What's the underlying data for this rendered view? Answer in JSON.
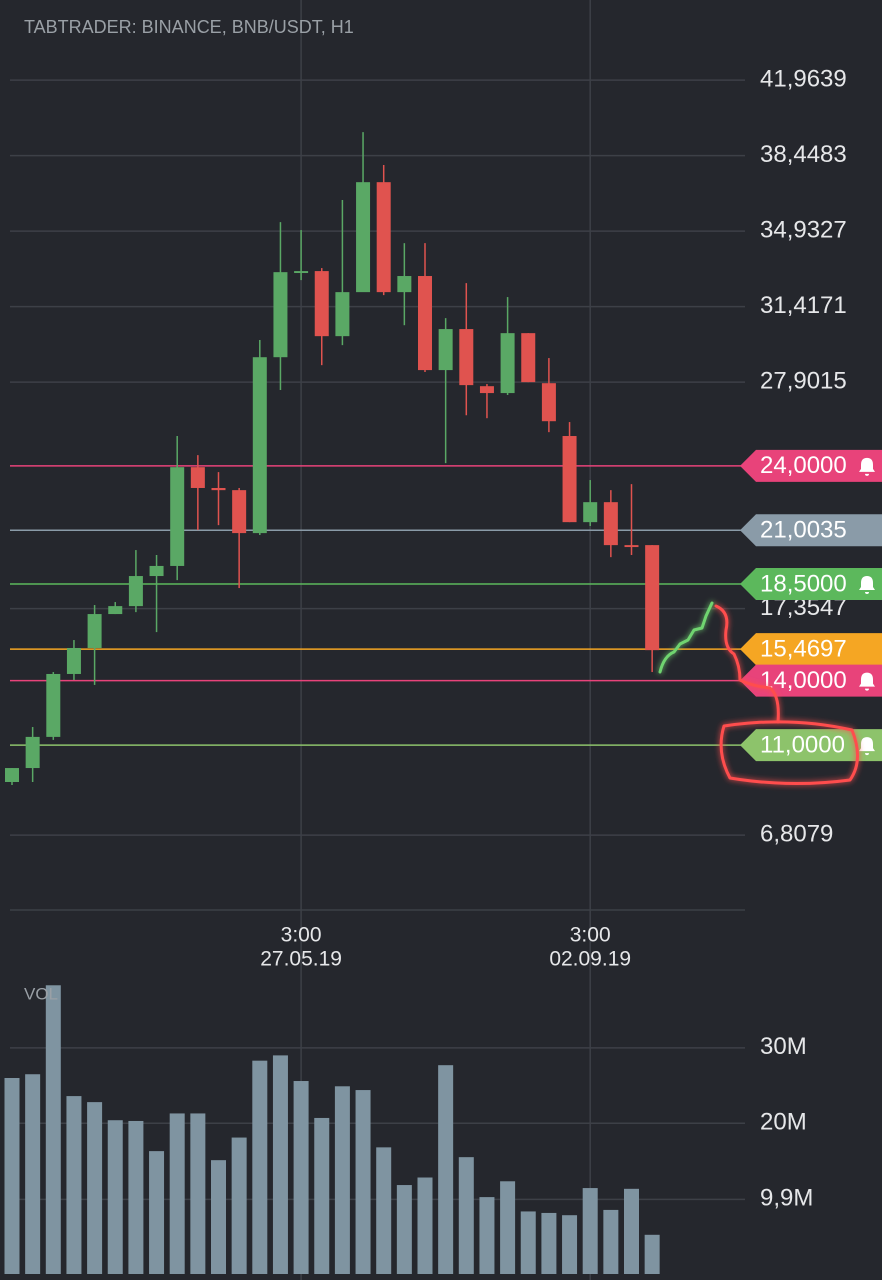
{
  "chart_data": [
    {
      "type": "candlestick",
      "title": "TABTRADER: BINANCE, BNB/USDT, H1",
      "categories": [
        null,
        null,
        null,
        null,
        null,
        null,
        null,
        null,
        null,
        null,
        null,
        null,
        null,
        null,
        "3:00",
        null,
        null,
        null,
        null,
        null,
        null,
        null,
        null,
        null,
        null,
        null,
        null,
        null,
        "3:00",
        null,
        null,
        null
      ],
      "dates": [
        null,
        null,
        null,
        null,
        null,
        null,
        null,
        null,
        null,
        null,
        null,
        null,
        null,
        null,
        "27.05.19",
        null,
        null,
        null,
        null,
        null,
        null,
        null,
        null,
        null,
        null,
        null,
        null,
        null,
        "02.09.19",
        null,
        null,
        null
      ],
      "open": [
        9.28,
        9.93,
        11.38,
        14.31,
        15.52,
        17.1,
        17.47,
        18.87,
        19.34,
        23.94,
        22.97,
        22.87,
        20.87,
        29.06,
        32.98,
        33.07,
        30.04,
        32.09,
        37.21,
        32.09,
        32.84,
        28.46,
        30.37,
        27.71,
        27.39,
        30.18,
        27.85,
        25.39,
        21.38,
        22.31,
        20.31,
        20.31
      ],
      "close": [
        9.93,
        11.38,
        14.31,
        15.52,
        17.1,
        17.47,
        18.87,
        19.34,
        23.94,
        22.97,
        22.87,
        20.87,
        29.06,
        33.02,
        33.07,
        30.04,
        32.09,
        37.21,
        32.09,
        32.84,
        28.46,
        30.37,
        27.76,
        27.39,
        30.18,
        27.9,
        26.08,
        21.38,
        22.31,
        20.31,
        20.22,
        15.42
      ],
      "high": [
        9.93,
        11.84,
        14.4,
        15.89,
        17.52,
        17.66,
        20.08,
        19.85,
        25.39,
        24.5,
        23.71,
        22.97,
        29.86,
        35.35,
        34.98,
        33.21,
        36.38,
        39.54,
        38.01,
        34.37,
        34.37,
        30.88,
        32.51,
        27.81,
        31.86,
        30.18,
        29.02,
        26.04,
        23.34,
        22.87,
        23.15,
        20.31
      ],
      "low": [
        9.14,
        9.28,
        11.24,
        14.03,
        13.8,
        17.1,
        17.19,
        16.26,
        18.68,
        21.01,
        21.24,
        18.31,
        20.78,
        27.53,
        32.65,
        28.69,
        29.62,
        32.18,
        31.95,
        30.55,
        28.37,
        24.13,
        26.36,
        26.22,
        27.3,
        27.9,
        25.57,
        21.38,
        21.2,
        19.75,
        19.85,
        14.4
      ],
      "up_color": "#5aa865",
      "down_color": "#e0534f",
      "ylim": [
        3.32,
        43.83
      ],
      "yticks": [
        {
          "value": 41.9639,
          "label": "41,9639"
        },
        {
          "value": 38.4483,
          "label": "38,4483"
        },
        {
          "value": 34.9327,
          "label": "34,9327"
        },
        {
          "value": 31.4171,
          "label": "31,4171"
        },
        {
          "value": 27.9015,
          "label": "27,9015"
        },
        {
          "value": 17.3547,
          "label": "17,3547"
        },
        {
          "value": 6.8079,
          "label": "6,8079"
        }
      ],
      "grid": true,
      "price_lines": [
        {
          "value": 24,
          "label": "24,0000",
          "color": "#e8437a",
          "alert": true
        },
        {
          "value": 21.0035,
          "label": "21,0035",
          "color": "#8a9ba8",
          "alert": false
        },
        {
          "value": 18.5,
          "label": "18,5000",
          "color": "#5cb85c",
          "alert": true
        },
        {
          "value": 15.4697,
          "label": "15,4697",
          "color": "#f5a623",
          "alert": false
        },
        {
          "value": 14,
          "label": "14,0000",
          "color": "#e8437a",
          "alert": true
        },
        {
          "value": 11,
          "label": "11,0000",
          "color": "#8dc36b",
          "alert": true
        }
      ]
    },
    {
      "type": "bar",
      "title": "VOL",
      "color": "#7f94a1",
      "values": [
        26.0,
        26.5,
        38.3,
        23.6,
        22.8,
        20.4,
        20.3,
        16.3,
        21.3,
        21.3,
        15.1,
        18.1,
        28.3,
        29.0,
        25.6,
        20.7,
        24.9,
        24.4,
        16.8,
        11.8,
        12.8,
        27.7,
        15.5,
        10.2,
        12.3,
        8.3,
        8.1,
        7.8,
        11.4,
        8.5,
        11.3,
        5.2
      ],
      "ylim": [
        0,
        39
      ],
      "yticks": [
        {
          "value": 30,
          "label": "30M"
        },
        {
          "value": 20,
          "label": "20M"
        },
        {
          "value": 9.9,
          "label": "9,9M"
        }
      ]
    }
  ]
}
